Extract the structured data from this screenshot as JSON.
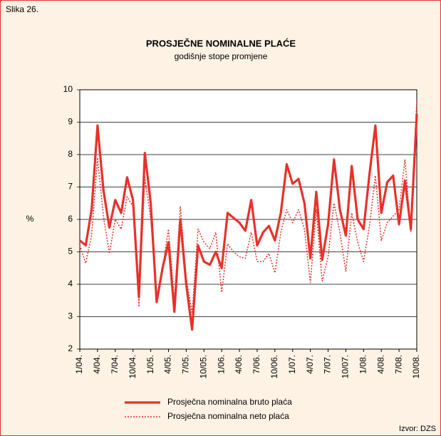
{
  "chart_data": {
    "type": "line",
    "label": "Slika 26.",
    "title": "PROSJEČNE NOMINALNE PLAĆE",
    "subtitle": "godišnje stope promjene",
    "ylabel": "%",
    "source": "Izvor: DZS",
    "categories": [
      "1/04.",
      null,
      null,
      "4/04.",
      null,
      null,
      "7/04.",
      null,
      null,
      "10/04.",
      null,
      null,
      "1/05.",
      null,
      null,
      "4/05.",
      null,
      null,
      "7/05.",
      null,
      null,
      "10/05.",
      null,
      null,
      "1/06.",
      null,
      null,
      "4/06.",
      null,
      null,
      "7/06.",
      null,
      null,
      "10/06.",
      null,
      null,
      "1/07.",
      null,
      null,
      "4/07.",
      null,
      null,
      "7/07.",
      null,
      null,
      "10/07.",
      null,
      null,
      "1/08.",
      null,
      null,
      "4/08.",
      null,
      null,
      "7/08.",
      null,
      null,
      "10/08."
    ],
    "series": [
      {
        "name": "Prosječna nominalna bruto plaća",
        "color": "#e8312a",
        "style": "solid",
        "values": [
          5.35,
          5.2,
          6.3,
          8.9,
          6.9,
          5.75,
          6.6,
          6.2,
          7.3,
          6.6,
          3.6,
          8.05,
          6.5,
          3.45,
          4.5,
          5.3,
          3.15,
          6.0,
          4.0,
          2.6,
          5.2,
          4.7,
          4.6,
          5.0,
          4.5,
          6.2,
          6.05,
          5.9,
          5.65,
          6.6,
          5.2,
          5.6,
          5.8,
          5.35,
          6.2,
          7.7,
          7.1,
          7.25,
          6.5,
          4.8,
          6.85,
          4.75,
          5.85,
          7.85,
          6.3,
          5.5,
          7.65,
          6.0,
          5.7,
          7.4,
          8.9,
          6.2,
          7.15,
          7.35,
          5.85,
          7.2,
          5.7,
          9.25
        ]
      },
      {
        "name": "Prosječna nominalna neto plaća",
        "color": "#e8312a",
        "style": "dotted",
        "values": [
          5.2,
          4.65,
          5.5,
          7.9,
          6.1,
          4.95,
          6.0,
          5.7,
          6.7,
          6.4,
          3.3,
          7.3,
          6.0,
          3.6,
          4.5,
          5.7,
          3.5,
          6.4,
          4.2,
          3.1,
          5.7,
          5.3,
          5.1,
          5.6,
          3.75,
          5.25,
          5.0,
          4.85,
          4.8,
          5.6,
          4.7,
          4.7,
          4.95,
          4.35,
          5.6,
          6.3,
          5.9,
          6.3,
          5.7,
          4.05,
          6.3,
          4.1,
          4.85,
          6.5,
          5.6,
          4.4,
          6.2,
          5.3,
          4.7,
          5.8,
          7.35,
          5.35,
          5.9,
          6.1,
          6.3,
          7.85,
          5.6,
          9.7
        ]
      }
    ],
    "ylim": [
      2,
      10
    ],
    "yticks": [
      2,
      3,
      4,
      5,
      6,
      7,
      8,
      9,
      10
    ],
    "grid": true,
    "legend": "bottom"
  }
}
